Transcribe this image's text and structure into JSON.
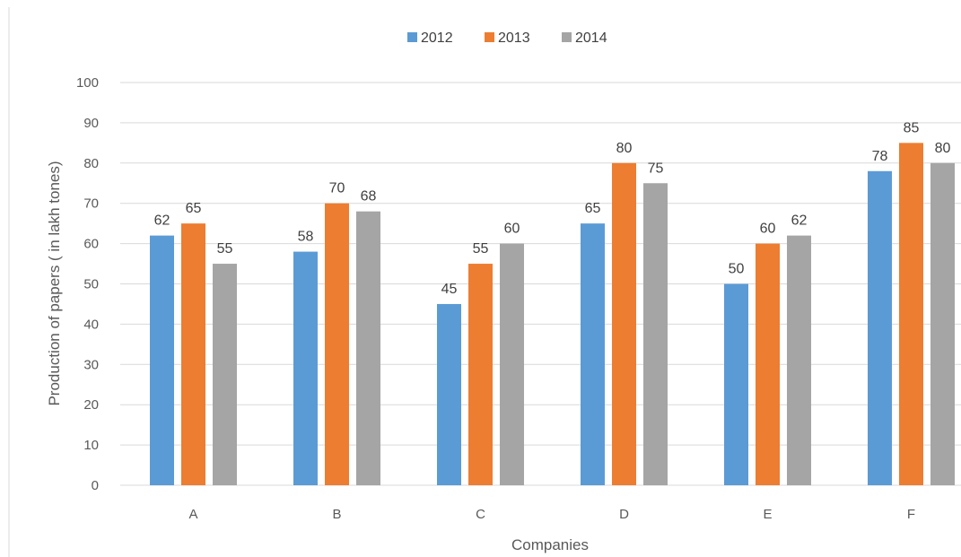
{
  "chart_data": {
    "type": "bar",
    "categories": [
      "A",
      "B",
      "C",
      "D",
      "E",
      "F"
    ],
    "series": [
      {
        "name": "2012",
        "values": [
          62,
          58,
          45,
          65,
          50,
          78
        ],
        "color": "#5b9bd5"
      },
      {
        "name": "2013",
        "values": [
          65,
          70,
          55,
          80,
          60,
          85
        ],
        "color": "#ed7d31"
      },
      {
        "name": "2014",
        "values": [
          55,
          68,
          60,
          75,
          62,
          80
        ],
        "color": "#a5a5a5"
      }
    ],
    "xlabel": "Companies",
    "ylabel": "Production of papers ( in lakh tones)",
    "ylim": [
      0,
      100
    ],
    "yticks": [
      0,
      10,
      20,
      30,
      40,
      50,
      60,
      70,
      80,
      90,
      100
    ],
    "grid": true,
    "legend_position": "top-center",
    "data_labels": true,
    "gridline_color": "#d9d9d9"
  }
}
